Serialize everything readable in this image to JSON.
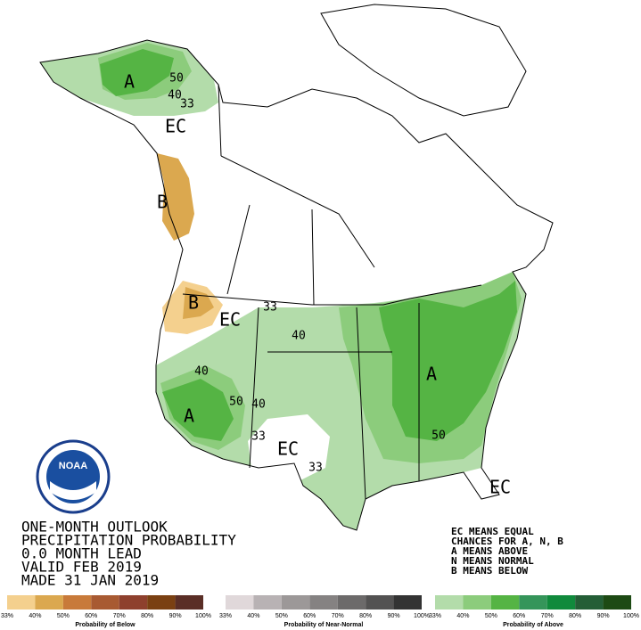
{
  "title_lines": [
    "ONE-MONTH OUTLOOK",
    "PRECIPITATION PROBABILITY",
    "0.0 MONTH LEAD",
    "VALID FEB 2019",
    "MADE 31 JAN 2019"
  ],
  "key_lines": [
    "EC MEANS EQUAL",
    "CHANCES FOR A, N, B",
    "A MEANS ABOVE",
    "N MEANS NORMAL",
    "B MEANS BELOW"
  ],
  "logo": "NOAA",
  "map_labels": [
    "A",
    "50",
    "40",
    "33",
    "EC",
    "B",
    "B",
    "EC",
    "33",
    "40",
    "40",
    "50",
    "40",
    "A",
    "33",
    "EC",
    "33",
    "A",
    "50",
    "EC"
  ],
  "legends": [
    {
      "title": "Probability of Below",
      "colors": [
        "#f4d08e",
        "#dba84f",
        "#c87a3a",
        "#a85a32",
        "#8e402d",
        "#7a4012",
        "#5a2e26"
      ],
      "ticks": [
        "33%",
        "40%",
        "50%",
        "60%",
        "70%",
        "80%",
        "90%",
        "100%"
      ]
    },
    {
      "title": "Probability of Near-Normal",
      "colors": [
        "#e0d8da",
        "#b8b2b4",
        "#9c9898",
        "#858282",
        "#6c6a6a",
        "#535252",
        "#333333"
      ],
      "ticks": [
        "33%",
        "40%",
        "50%",
        "60%",
        "70%",
        "80%",
        "90%",
        "100%"
      ]
    },
    {
      "title": "Probability of Above",
      "colors": [
        "#b3dcaa",
        "#8ccc7c",
        "#55b444",
        "#35955a",
        "#108a3c",
        "#245e36",
        "#1d4a14"
      ],
      "ticks": [
        "33%",
        "40%",
        "50%",
        "60%",
        "70%",
        "80%",
        "90%",
        "100%"
      ]
    }
  ]
}
